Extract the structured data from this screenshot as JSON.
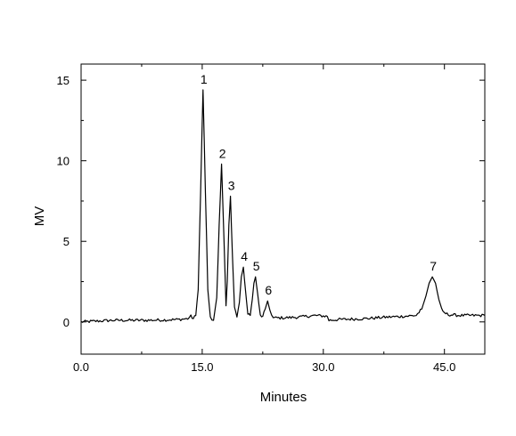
{
  "chart_data": {
    "type": "line",
    "title": "",
    "xlabel": "Minutes",
    "ylabel": "MV",
    "xlim": [
      0,
      50
    ],
    "ylim": [
      -2,
      16
    ],
    "xticks": [
      0,
      15,
      30,
      45
    ],
    "xtick_labels": [
      "0.0",
      "15.0",
      "30.0",
      "45.0"
    ],
    "x_minor_ticks": [
      7.5,
      22.5,
      37.5
    ],
    "yticks": [
      0,
      5,
      10,
      15
    ],
    "ytick_labels": [
      "0",
      "5",
      "10",
      "15"
    ],
    "y_minor_ticks": [
      2.5,
      7.5,
      12.5
    ],
    "grid": false,
    "legend": "none",
    "colors": {
      "line": "#000000",
      "axes": "#000000"
    },
    "peaks": [
      {
        "label": "1",
        "x": 15.1,
        "y": 14.4
      },
      {
        "label": "2",
        "x": 17.4,
        "y": 9.8
      },
      {
        "label": "3",
        "x": 18.5,
        "y": 7.8
      },
      {
        "label": "4",
        "x": 20.1,
        "y": 3.4
      },
      {
        "label": "5",
        "x": 21.6,
        "y": 2.8
      },
      {
        "label": "6",
        "x": 23.1,
        "y": 1.3
      },
      {
        "label": "7",
        "x": 43.5,
        "y": 2.8
      }
    ],
    "series": [
      {
        "points": [
          [
            0.0,
            0.0
          ],
          [
            2.0,
            0.05
          ],
          [
            4.0,
            0.1
          ],
          [
            6.0,
            0.1
          ],
          [
            8.0,
            0.1
          ],
          [
            10.0,
            0.12
          ],
          [
            12.0,
            0.15
          ],
          [
            13.2,
            0.2
          ],
          [
            13.6,
            0.35
          ],
          [
            13.9,
            0.2
          ],
          [
            14.2,
            0.4
          ],
          [
            14.5,
            2.0
          ],
          [
            14.8,
            8.0
          ],
          [
            15.1,
            14.4
          ],
          [
            15.4,
            8.0
          ],
          [
            15.7,
            2.0
          ],
          [
            16.0,
            0.3
          ],
          [
            16.4,
            0.1
          ],
          [
            16.8,
            1.5
          ],
          [
            17.1,
            6.0
          ],
          [
            17.4,
            9.8
          ],
          [
            17.7,
            5.0
          ],
          [
            17.95,
            1.0
          ],
          [
            18.1,
            2.5
          ],
          [
            18.3,
            6.0
          ],
          [
            18.5,
            7.8
          ],
          [
            18.75,
            4.0
          ],
          [
            19.0,
            0.9
          ],
          [
            19.3,
            0.3
          ],
          [
            19.6,
            1.2
          ],
          [
            19.85,
            2.8
          ],
          [
            20.1,
            3.4
          ],
          [
            20.35,
            2.0
          ],
          [
            20.65,
            0.5
          ],
          [
            20.95,
            0.4
          ],
          [
            21.2,
            1.4
          ],
          [
            21.4,
            2.4
          ],
          [
            21.6,
            2.8
          ],
          [
            21.85,
            1.8
          ],
          [
            22.2,
            0.4
          ],
          [
            22.5,
            0.3
          ],
          [
            22.8,
            0.8
          ],
          [
            23.1,
            1.3
          ],
          [
            23.4,
            0.7
          ],
          [
            23.8,
            0.25
          ],
          [
            25.0,
            0.25
          ],
          [
            27.0,
            0.3
          ],
          [
            29.0,
            0.4
          ],
          [
            30.5,
            0.35
          ],
          [
            30.7,
            0.1
          ],
          [
            32.0,
            0.15
          ],
          [
            35.0,
            0.2
          ],
          [
            38.0,
            0.3
          ],
          [
            40.0,
            0.35
          ],
          [
            41.5,
            0.4
          ],
          [
            42.2,
            0.8
          ],
          [
            42.7,
            1.6
          ],
          [
            43.1,
            2.4
          ],
          [
            43.5,
            2.8
          ],
          [
            43.9,
            2.4
          ],
          [
            44.3,
            1.4
          ],
          [
            44.8,
            0.6
          ],
          [
            45.5,
            0.45
          ],
          [
            47.0,
            0.4
          ],
          [
            50.0,
            0.4
          ]
        ]
      }
    ]
  }
}
